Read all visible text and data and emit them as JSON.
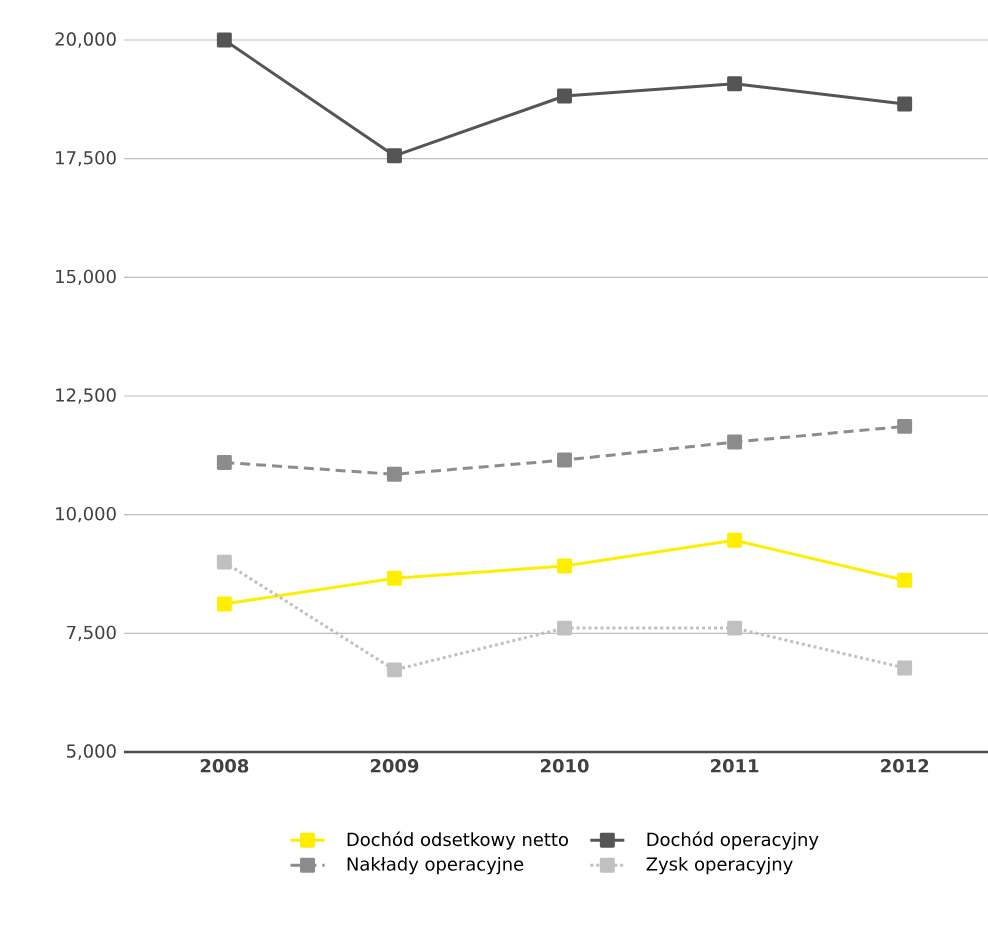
{
  "chart_data": {
    "type": "line",
    "categories": [
      "2008",
      "2009",
      "2010",
      "2011",
      "2012"
    ],
    "series": [
      {
        "name": "Dochód odsetkowy netto",
        "color": "#ffee00",
        "line_style": "solid",
        "values": [
          8120,
          8660,
          8920,
          9460,
          8620
        ]
      },
      {
        "name": "Dochód operacyjny",
        "color": "#555555",
        "line_style": "solid",
        "values": [
          20000,
          17560,
          18820,
          19080,
          18650
        ]
      },
      {
        "name": "Nakłady operacyjne",
        "color": "#8c8c8c",
        "line_style": "dashed",
        "values": [
          11100,
          10850,
          11150,
          11530,
          11860
        ]
      },
      {
        "name": "Zysk operacyjny",
        "color": "#c0c0c0",
        "line_style": "dotted",
        "values": [
          9000,
          6730,
          7610,
          7610,
          6770
        ]
      }
    ],
    "ylim": [
      5000,
      20000
    ],
    "yticks": [
      {
        "value": 5000,
        "label": "5,000"
      },
      {
        "value": 7500,
        "label": "7,500"
      },
      {
        "value": 10000,
        "label": "10,000"
      },
      {
        "value": 12500,
        "label": "12,500"
      },
      {
        "value": 15000,
        "label": "15,000"
      },
      {
        "value": 17500,
        "label": "17,500"
      },
      {
        "value": 20000,
        "label": "20,000"
      }
    ],
    "grid": "y",
    "legend": "bottom",
    "marker": "square"
  }
}
